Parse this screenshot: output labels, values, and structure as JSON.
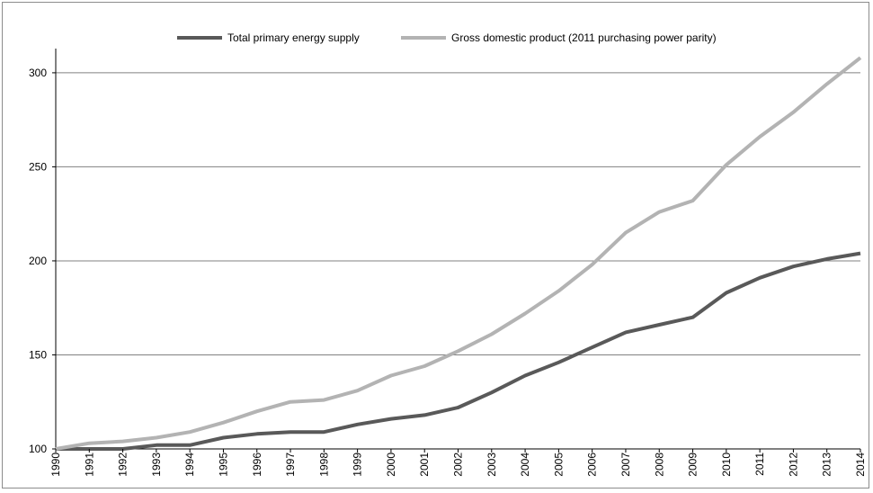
{
  "chart_data": {
    "type": "line",
    "title": "",
    "xlabel": "",
    "ylabel": "",
    "x": [
      "1990",
      "1991",
      "1992",
      "1993",
      "1994",
      "1995",
      "1996",
      "1997",
      "1998",
      "1999",
      "2000",
      "2001",
      "2002",
      "2003",
      "2004",
      "2005",
      "2006",
      "2007",
      "2008",
      "2009",
      "2010",
      "2011",
      "2012",
      "2013",
      "2014"
    ],
    "ylim": [
      100,
      310
    ],
    "yticks": [
      100,
      150,
      200,
      250,
      300
    ],
    "grid": "horizontal",
    "legend_position": "top-center",
    "series": [
      {
        "name": "Total primary energy supply",
        "color": "#595959",
        "values": [
          100,
          100,
          100,
          102,
          102,
          106,
          108,
          109,
          109,
          113,
          116,
          118,
          122,
          130,
          139,
          146,
          154,
          162,
          166,
          170,
          183,
          191,
          197,
          201,
          204
        ]
      },
      {
        "name": "Gross domestic product (2011 purchasing power parity)",
        "color": "#b3b3b3",
        "values": [
          100,
          103,
          104,
          106,
          109,
          114,
          120,
          125,
          126,
          131,
          139,
          144,
          152,
          161,
          172,
          184,
          198,
          215,
          226,
          232,
          251,
          266,
          279,
          294,
          308
        ]
      }
    ]
  }
}
